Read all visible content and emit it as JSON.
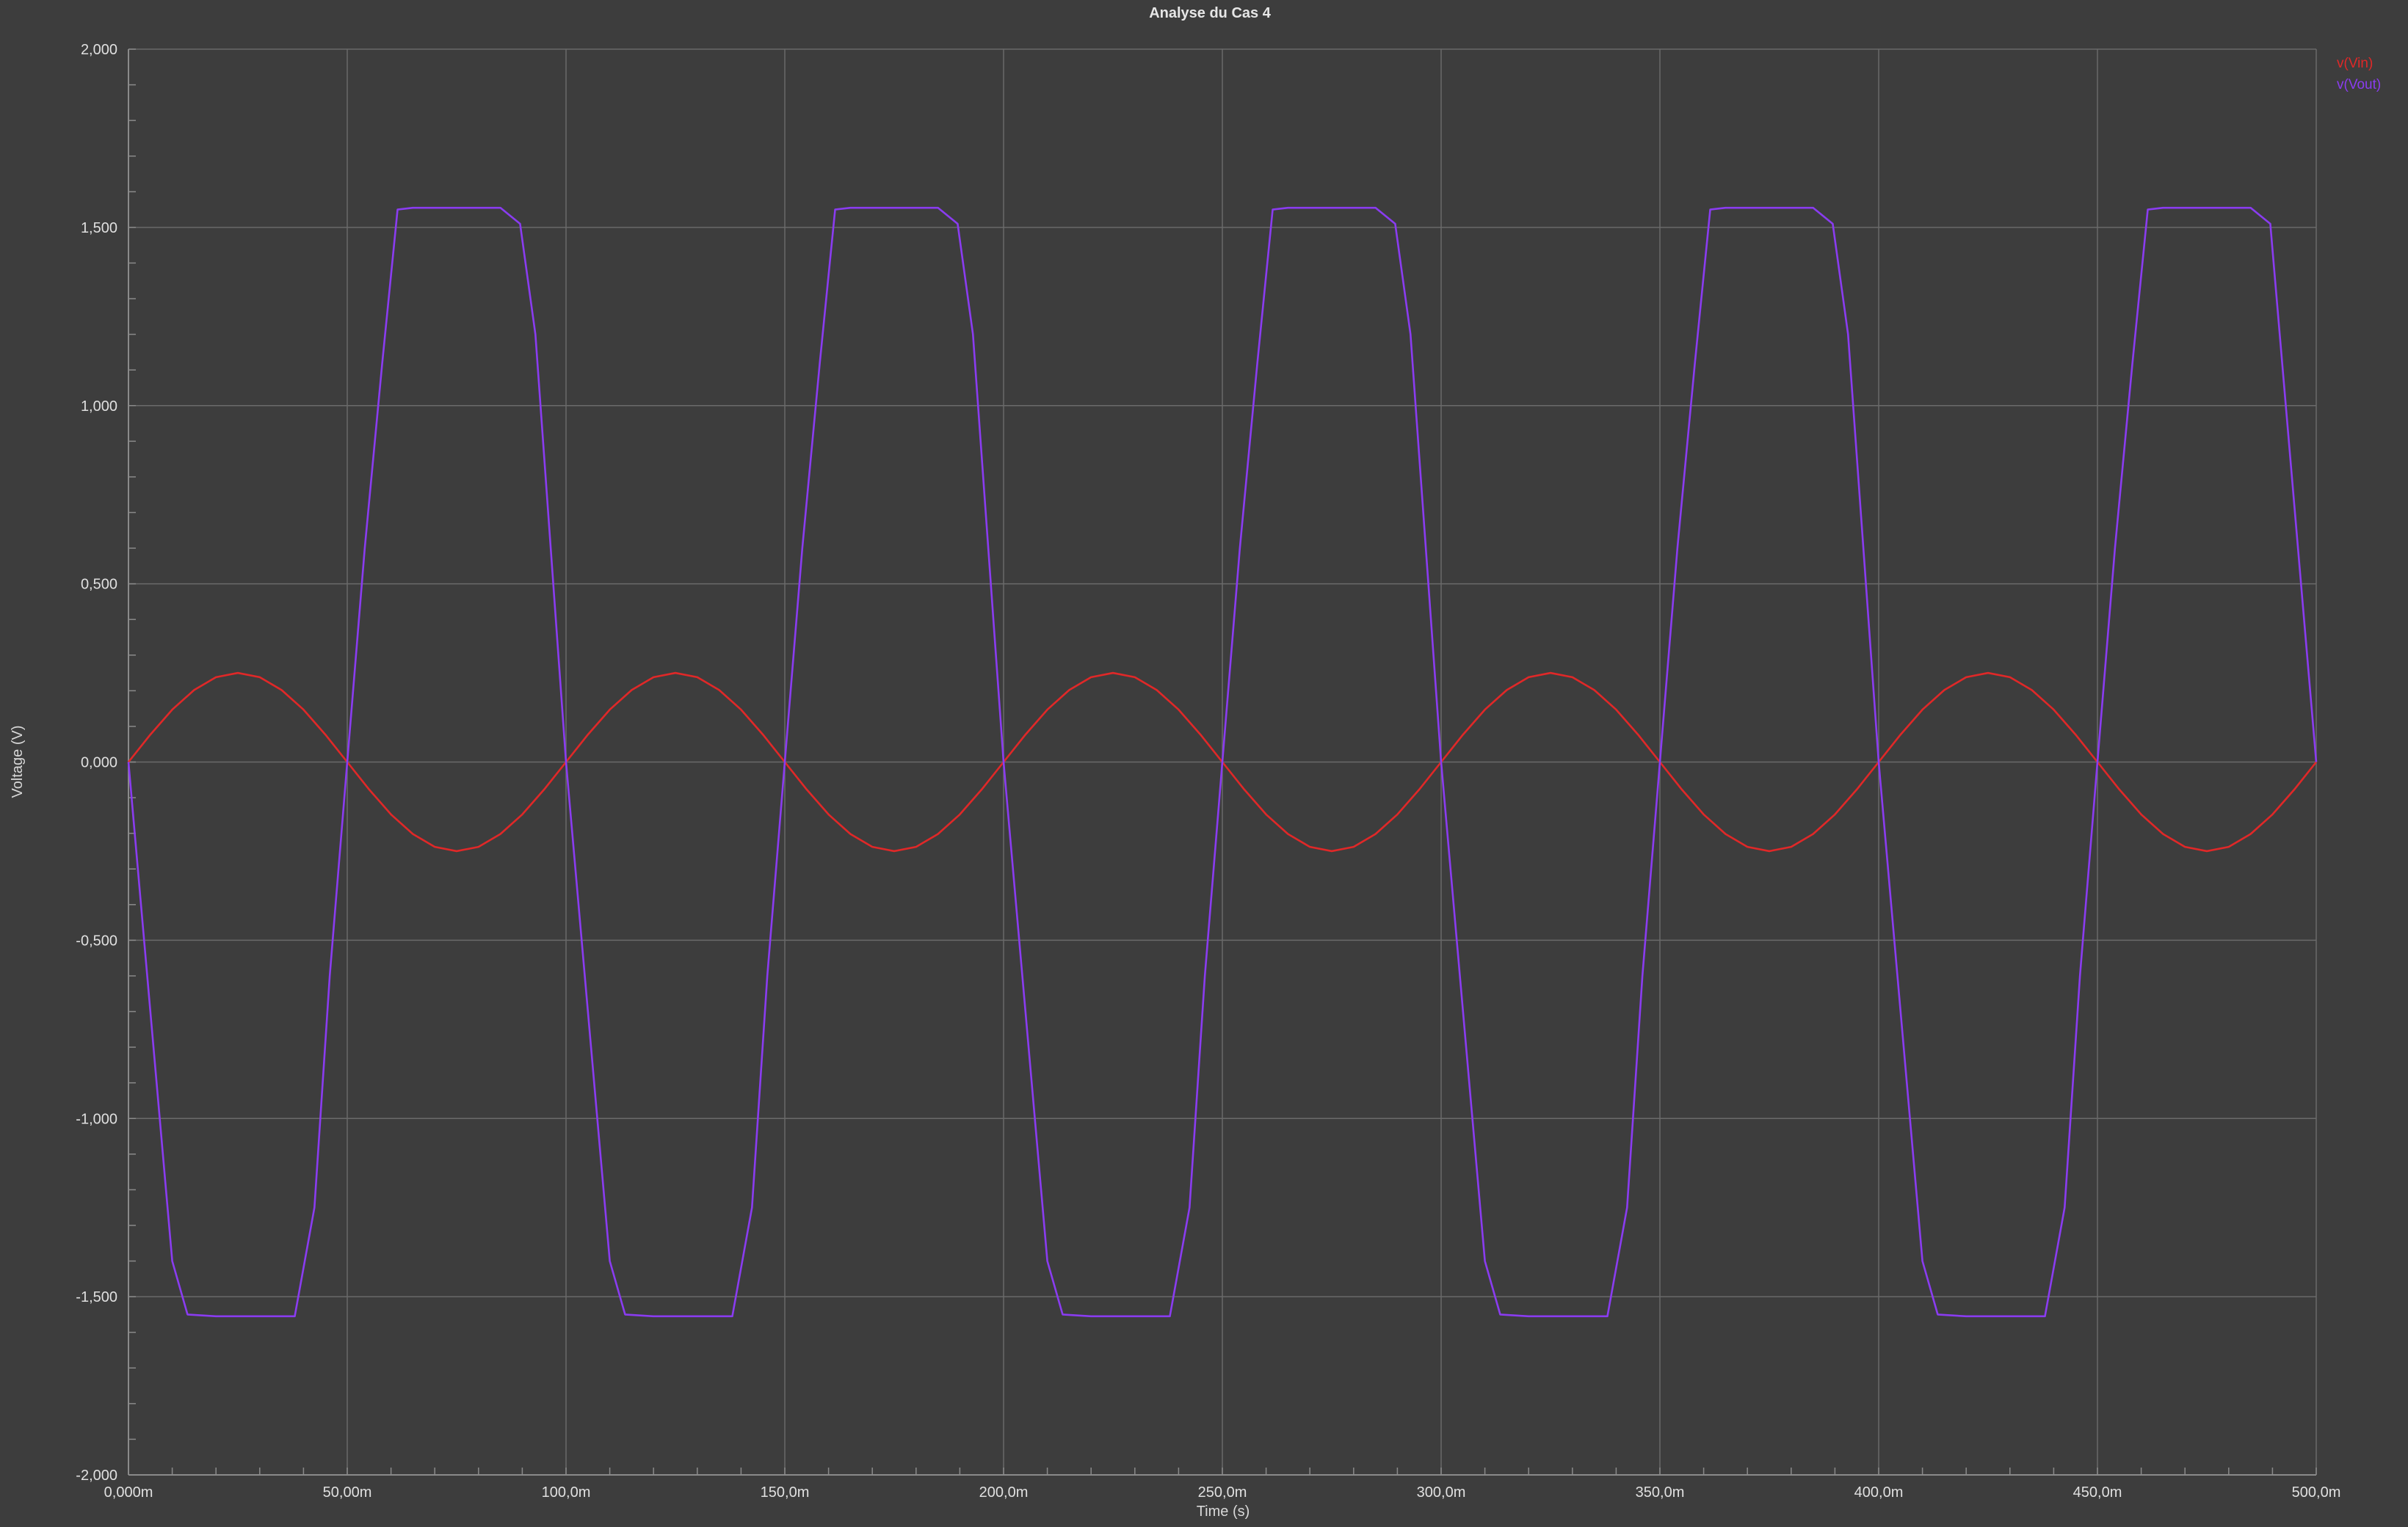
{
  "chart_data": {
    "type": "line",
    "title": "Analyse du Cas 4",
    "xlabel": "Time (s)",
    "ylabel": "Voltage (V)",
    "xlim": [
      0,
      0.5
    ],
    "ylim": [
      -2,
      2
    ],
    "grid": true,
    "legend_position": "top-right",
    "colors": {
      "background": "#3d3d3d",
      "grid": "#6a6a6a",
      "axis": "#8a8a8a"
    },
    "x_ticks": [
      {
        "value": 0,
        "label": "0,000m"
      },
      {
        "value": 0.05,
        "label": "50,00m"
      },
      {
        "value": 0.1,
        "label": "100,0m"
      },
      {
        "value": 0.15,
        "label": "150,0m"
      },
      {
        "value": 0.2,
        "label": "200,0m"
      },
      {
        "value": 0.25,
        "label": "250,0m"
      },
      {
        "value": 0.3,
        "label": "300,0m"
      },
      {
        "value": 0.35,
        "label": "350,0m"
      },
      {
        "value": 0.4,
        "label": "400,0m"
      },
      {
        "value": 0.45,
        "label": "450,0m"
      },
      {
        "value": 0.5,
        "label": "500,0m"
      }
    ],
    "y_ticks": [
      {
        "value": 2,
        "label": "2,000"
      },
      {
        "value": 1.5,
        "label": "1,500"
      },
      {
        "value": 1,
        "label": "1,000"
      },
      {
        "value": 0.5,
        "label": "0,500"
      },
      {
        "value": 0,
        "label": "0,000"
      },
      {
        "value": -0.5,
        "label": "-0,500"
      },
      {
        "value": -1,
        "label": "-1,000"
      },
      {
        "value": -1.5,
        "label": "-1,500"
      },
      {
        "value": -2,
        "label": "-2,000"
      }
    ],
    "series": [
      {
        "name": "v(Vin)",
        "color": "#e02828",
        "x": [
          0,
          0.005,
          0.01,
          0.015,
          0.02,
          0.025,
          0.03,
          0.035,
          0.04,
          0.045,
          0.05,
          0.055,
          0.06,
          0.065,
          0.07,
          0.075,
          0.08,
          0.085,
          0.09,
          0.095,
          0.1,
          0.105,
          0.11,
          0.115,
          0.12,
          0.125,
          0.13,
          0.135,
          0.14,
          0.145,
          0.15,
          0.155,
          0.16,
          0.165,
          0.17,
          0.175,
          0.18,
          0.185,
          0.19,
          0.195,
          0.2,
          0.205,
          0.21,
          0.215,
          0.22,
          0.225,
          0.23,
          0.235,
          0.24,
          0.245,
          0.25,
          0.255,
          0.26,
          0.265,
          0.27,
          0.275,
          0.28,
          0.285,
          0.29,
          0.295,
          0.3,
          0.305,
          0.31,
          0.315,
          0.32,
          0.325,
          0.33,
          0.335,
          0.34,
          0.345,
          0.35,
          0.355,
          0.36,
          0.365,
          0.37,
          0.375,
          0.38,
          0.385,
          0.39,
          0.395,
          0.4,
          0.405,
          0.41,
          0.415,
          0.42,
          0.425,
          0.43,
          0.435,
          0.44,
          0.445,
          0.45,
          0.455,
          0.46,
          0.465,
          0.47,
          0.475,
          0.48,
          0.485,
          0.49,
          0.495,
          0.5
        ],
        "y": [
          0,
          0.077,
          0.147,
          0.202,
          0.238,
          0.25,
          0.238,
          0.202,
          0.147,
          0.077,
          0,
          -0.077,
          -0.147,
          -0.202,
          -0.238,
          -0.25,
          -0.238,
          -0.202,
          -0.147,
          -0.077,
          0,
          0.077,
          0.147,
          0.202,
          0.238,
          0.25,
          0.238,
          0.202,
          0.147,
          0.077,
          0,
          -0.077,
          -0.147,
          -0.202,
          -0.238,
          -0.25,
          -0.238,
          -0.202,
          -0.147,
          -0.077,
          0,
          0.077,
          0.147,
          0.202,
          0.238,
          0.25,
          0.238,
          0.202,
          0.147,
          0.077,
          0,
          -0.077,
          -0.147,
          -0.202,
          -0.238,
          -0.25,
          -0.238,
          -0.202,
          -0.147,
          -0.077,
          0,
          0.077,
          0.147,
          0.202,
          0.238,
          0.25,
          0.238,
          0.202,
          0.147,
          0.077,
          0,
          -0.077,
          -0.147,
          -0.202,
          -0.238,
          -0.25,
          -0.238,
          -0.202,
          -0.147,
          -0.077,
          0,
          0.077,
          0.147,
          0.202,
          0.238,
          0.25,
          0.238,
          0.202,
          0.147,
          0.077,
          0,
          -0.077,
          -0.147,
          -0.202,
          -0.238,
          -0.25,
          -0.238,
          -0.202,
          -0.147,
          -0.077,
          0
        ]
      },
      {
        "name": "v(Vout)",
        "color": "#8a3cf0",
        "x": [
          0,
          0.005,
          0.01,
          0.0135,
          0.02,
          0.03,
          0.038,
          0.0425,
          0.046,
          0.05,
          0.054,
          0.058,
          0.0615,
          0.065,
          0.075,
          0.085,
          0.0895,
          0.093,
          0.1,
          0.105,
          0.11,
          0.1135,
          0.12,
          0.13,
          0.138,
          0.1425,
          0.146,
          0.15,
          0.154,
          0.158,
          0.1615,
          0.165,
          0.175,
          0.185,
          0.1895,
          0.193,
          0.2,
          0.205,
          0.21,
          0.2135,
          0.22,
          0.23,
          0.238,
          0.2425,
          0.246,
          0.25,
          0.254,
          0.258,
          0.2615,
          0.265,
          0.275,
          0.285,
          0.2895,
          0.293,
          0.3,
          0.305,
          0.31,
          0.3135,
          0.32,
          0.33,
          0.338,
          0.3425,
          0.346,
          0.35,
          0.354,
          0.358,
          0.3615,
          0.365,
          0.375,
          0.385,
          0.3895,
          0.393,
          0.4,
          0.405,
          0.41,
          0.4135,
          0.42,
          0.43,
          0.438,
          0.4425,
          0.446,
          0.45,
          0.454,
          0.458,
          0.4615,
          0.465,
          0.475,
          0.485,
          0.4895,
          0.5
        ],
        "y": [
          0,
          -0.7,
          -1.4,
          -1.55,
          -1.555,
          -1.555,
          -1.555,
          -1.25,
          -0.6,
          0,
          0.6,
          1.12,
          1.55,
          1.555,
          1.555,
          1.555,
          1.51,
          1.2,
          0,
          -0.7,
          -1.4,
          -1.55,
          -1.555,
          -1.555,
          -1.555,
          -1.25,
          -0.6,
          0,
          0.6,
          1.12,
          1.55,
          1.555,
          1.555,
          1.555,
          1.51,
          1.2,
          0,
          -0.7,
          -1.4,
          -1.55,
          -1.555,
          -1.555,
          -1.555,
          -1.25,
          -0.6,
          0,
          0.6,
          1.12,
          1.55,
          1.555,
          1.555,
          1.555,
          1.51,
          1.2,
          0,
          -0.7,
          -1.4,
          -1.55,
          -1.555,
          -1.555,
          -1.555,
          -1.25,
          -0.6,
          0,
          0.6,
          1.12,
          1.55,
          1.555,
          1.555,
          1.555,
          1.51,
          1.2,
          0,
          -0.7,
          -1.4,
          -1.55,
          -1.555,
          -1.555,
          -1.555,
          -1.25,
          -0.6,
          0,
          0.6,
          1.12,
          1.55,
          1.555,
          1.555,
          1.555,
          1.51,
          0
        ]
      }
    ]
  }
}
